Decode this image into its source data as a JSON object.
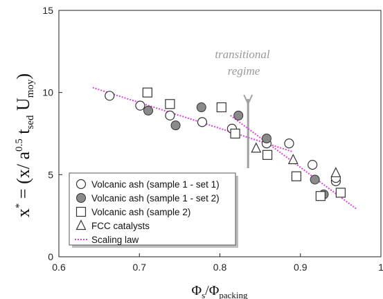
{
  "chart_data": {
    "type": "scatter",
    "xlabel_main": "Φ",
    "xlabel_sub1": "s",
    "xlabel_slash": "/Φ",
    "xlabel_sub2": "packing",
    "ylabel": "x* = (x/ a^0.5 t_sed U_moy)",
    "xlim": [
      0.6,
      1.0
    ],
    "ylim": [
      0,
      15
    ],
    "xticks": [
      "0.6",
      "0.7",
      "0.8",
      "0.9",
      "1"
    ],
    "yticks": [
      "0",
      "5",
      "10",
      "15"
    ],
    "grid": false,
    "legend_position": "bottom-left",
    "annotation": {
      "line1": "transitional",
      "line2": "regime",
      "x": 0.835
    },
    "series": [
      {
        "name": "Volcanic ash (sample 1 - set 1)",
        "marker": "circle-open",
        "points": [
          {
            "x": 0.663,
            "y": 9.8
          },
          {
            "x": 0.701,
            "y": 9.2
          },
          {
            "x": 0.738,
            "y": 8.6
          },
          {
            "x": 0.778,
            "y": 8.2
          },
          {
            "x": 0.815,
            "y": 7.8
          },
          {
            "x": 0.858,
            "y": 6.9
          },
          {
            "x": 0.886,
            "y": 6.9
          },
          {
            "x": 0.915,
            "y": 5.6
          },
          {
            "x": 0.944,
            "y": 4.6
          },
          {
            "x": 0.944,
            "y": 4.8
          }
        ]
      },
      {
        "name": "Volcanic ash (sample 1 - set 2)",
        "marker": "circle-filled",
        "points": [
          {
            "x": 0.711,
            "y": 8.9
          },
          {
            "x": 0.745,
            "y": 8.0
          },
          {
            "x": 0.777,
            "y": 9.1
          },
          {
            "x": 0.823,
            "y": 8.6
          },
          {
            "x": 0.858,
            "y": 7.2
          },
          {
            "x": 0.918,
            "y": 4.7
          },
          {
            "x": 0.929,
            "y": 3.8
          }
        ]
      },
      {
        "name": "Volcanic ash (sample 2)",
        "marker": "square-open",
        "points": [
          {
            "x": 0.71,
            "y": 10.0
          },
          {
            "x": 0.738,
            "y": 9.3
          },
          {
            "x": 0.802,
            "y": 9.1
          },
          {
            "x": 0.819,
            "y": 7.5
          },
          {
            "x": 0.859,
            "y": 6.2
          },
          {
            "x": 0.895,
            "y": 4.9
          },
          {
            "x": 0.925,
            "y": 3.7
          },
          {
            "x": 0.95,
            "y": 3.9
          }
        ]
      },
      {
        "name": "FCC catalysts",
        "marker": "triangle-open",
        "points": [
          {
            "x": 0.845,
            "y": 6.6
          },
          {
            "x": 0.891,
            "y": 5.9
          },
          {
            "x": 0.944,
            "y": 5.1
          }
        ]
      },
      {
        "name": "Scaling law",
        "marker": "dotted-line-magenta",
        "lines": [
          [
            [
              0.642,
              10.3
            ],
            [
              0.89,
              6.4
            ]
          ],
          [
            [
              0.813,
              8.6
            ],
            [
              0.97,
              2.9
            ]
          ]
        ]
      }
    ]
  },
  "colors": {
    "scaling_law": "#e040e0",
    "marker_stroke": "#333333",
    "marker_filled": "#8a8a8a",
    "transition_bar": "#a0a0a0",
    "annotation_text": "#9a9a9a"
  }
}
